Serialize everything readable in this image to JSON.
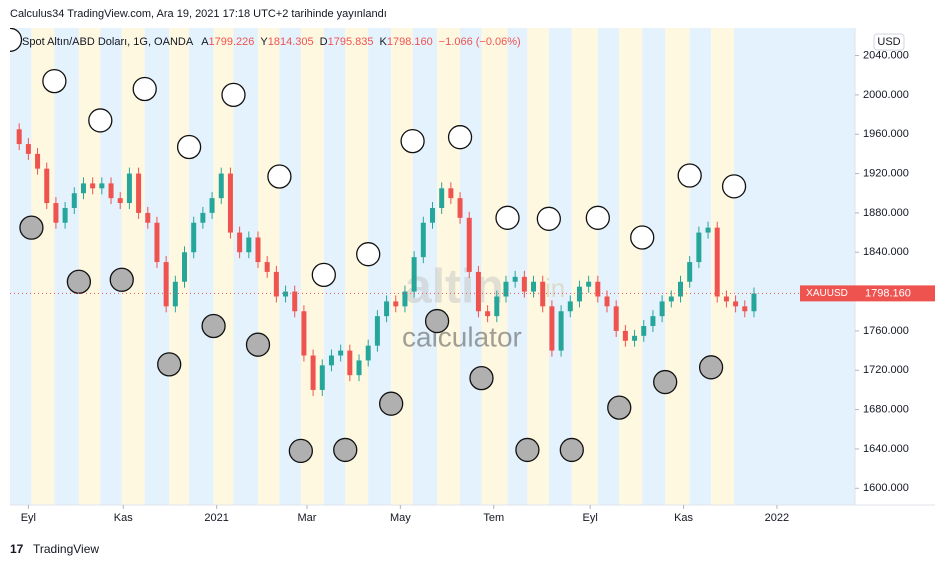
{
  "header": {
    "published": "Calculus34 TradingView.com, Ara 19, 2021 17:18 UTC+2 tarihinde yayınlandı"
  },
  "chart_data": {
    "type": "candlestick",
    "symbol": "Spot Altın/ABD Doları, 1G, OANDA",
    "ohlc": [
      {
        "key": "A",
        "value": "1799.226"
      },
      {
        "key": "Y",
        "value": "1814.305"
      },
      {
        "key": "D",
        "value": "1795.835"
      },
      {
        "key": "K",
        "value": "1798.160"
      }
    ],
    "change": "−1.066 (−0.06%)",
    "currency": "USD",
    "ticker": "XAUUSD",
    "last_price": {
      "value": 1798.16,
      "label": "1798.160"
    },
    "watermark": [
      "altin",
      "in",
      "calculator"
    ],
    "up_color": "#26a69a",
    "down_color": "#ef5350",
    "x": [
      0,
      6,
      12,
      18,
      24,
      30,
      36,
      42,
      48,
      54,
      60,
      66,
      72,
      78,
      84,
      90,
      96,
      102,
      108,
      114,
      120,
      126,
      132,
      138,
      144,
      150,
      156,
      162,
      168,
      174,
      180,
      186,
      192,
      198,
      204,
      210,
      216,
      222,
      228,
      234,
      240,
      246,
      252,
      258,
      264,
      270,
      276,
      282,
      288,
      294,
      300,
      306,
      312,
      318,
      324,
      330,
      336,
      342,
      348,
      354,
      360,
      366,
      372,
      378,
      384,
      390,
      396,
      402,
      408,
      414,
      420,
      426,
      432,
      438,
      444,
      450,
      456,
      462,
      468,
      474,
      480,
      486
    ],
    "values": [
      1965,
      1950,
      1940,
      1925,
      1890,
      1870,
      1885,
      1900,
      1910,
      1905,
      1910,
      1895,
      1890,
      1920,
      1880,
      1870,
      1830,
      1785,
      1810,
      1840,
      1870,
      1880,
      1895,
      1920,
      1860,
      1840,
      1855,
      1830,
      1820,
      1795,
      1800,
      1780,
      1735,
      1700,
      1725,
      1735,
      1740,
      1715,
      1730,
      1745,
      1775,
      1790,
      1785,
      1800,
      1835,
      1870,
      1885,
      1905,
      1895,
      1875,
      1820,
      1780,
      1775,
      1795,
      1810,
      1815,
      1800,
      1810,
      1785,
      1740,
      1780,
      1790,
      1805,
      1810,
      1795,
      1785,
      1760,
      1750,
      1755,
      1765,
      1775,
      1790,
      1795,
      1810,
      1830,
      1860,
      1865,
      1795,
      1790,
      1785,
      1780,
      1798
    ],
    "markers": [
      {
        "fill": "#ffffff",
        "x": [
          0,
          29,
          59,
          88,
          117,
          146,
          176,
          205,
          234,
          263,
          294,
          325,
          352,
          384,
          413,
          444,
          473
        ],
        "y": [
          2056,
          2014,
          1974,
          2006,
          1947,
          2000,
          1917,
          1817,
          1838,
          1953,
          1957,
          1875,
          1874,
          1875,
          1855,
          1918,
          1907
        ]
      },
      {
        "fill": "#b0b0b0",
        "x": [
          14,
          45,
          73,
          104,
          133,
          162,
          190,
          219,
          249,
          279,
          308,
          338,
          367,
          398,
          428,
          458
        ],
        "y": [
          1865,
          1810,
          1812,
          1726,
          1765,
          1746,
          1638,
          1639,
          1686,
          1770,
          1712,
          1639,
          1639,
          1682,
          1708,
          1723
        ]
      }
    ],
    "xlim": [
      0,
      552
    ],
    "xticks": [
      {
        "value": 12,
        "label": "Eyl"
      },
      {
        "value": 74,
        "label": "Kas"
      },
      {
        "value": 135,
        "label": "2021"
      },
      {
        "value": 194,
        "label": "Mar"
      },
      {
        "value": 255,
        "label": "May"
      },
      {
        "value": 316,
        "label": "Tem"
      },
      {
        "value": 379,
        "label": "Eyl"
      },
      {
        "value": 440,
        "label": "Kas"
      },
      {
        "value": 501,
        "label": "2022"
      }
    ],
    "ylim": [
      1583,
      2068
    ],
    "yticks": [
      {
        "value": 1600,
        "label": "1600.000"
      },
      {
        "value": 1640,
        "label": "1640.000"
      },
      {
        "value": 1680,
        "label": "1680.000"
      },
      {
        "value": 1720,
        "label": "1720.000"
      },
      {
        "value": 1760,
        "label": "1760.000"
      },
      {
        "value": 1800,
        "label": "1800.000"
      },
      {
        "value": 1840,
        "label": "1840.000"
      },
      {
        "value": 1880,
        "label": "1880.000"
      },
      {
        "value": 1920,
        "label": "1920.000"
      },
      {
        "value": 1960,
        "label": "1960.000"
      },
      {
        "value": 2000,
        "label": "2000.000"
      },
      {
        "value": 2040,
        "label": "2040.000"
      }
    ]
  },
  "footer": {
    "brand": "TradingView"
  }
}
